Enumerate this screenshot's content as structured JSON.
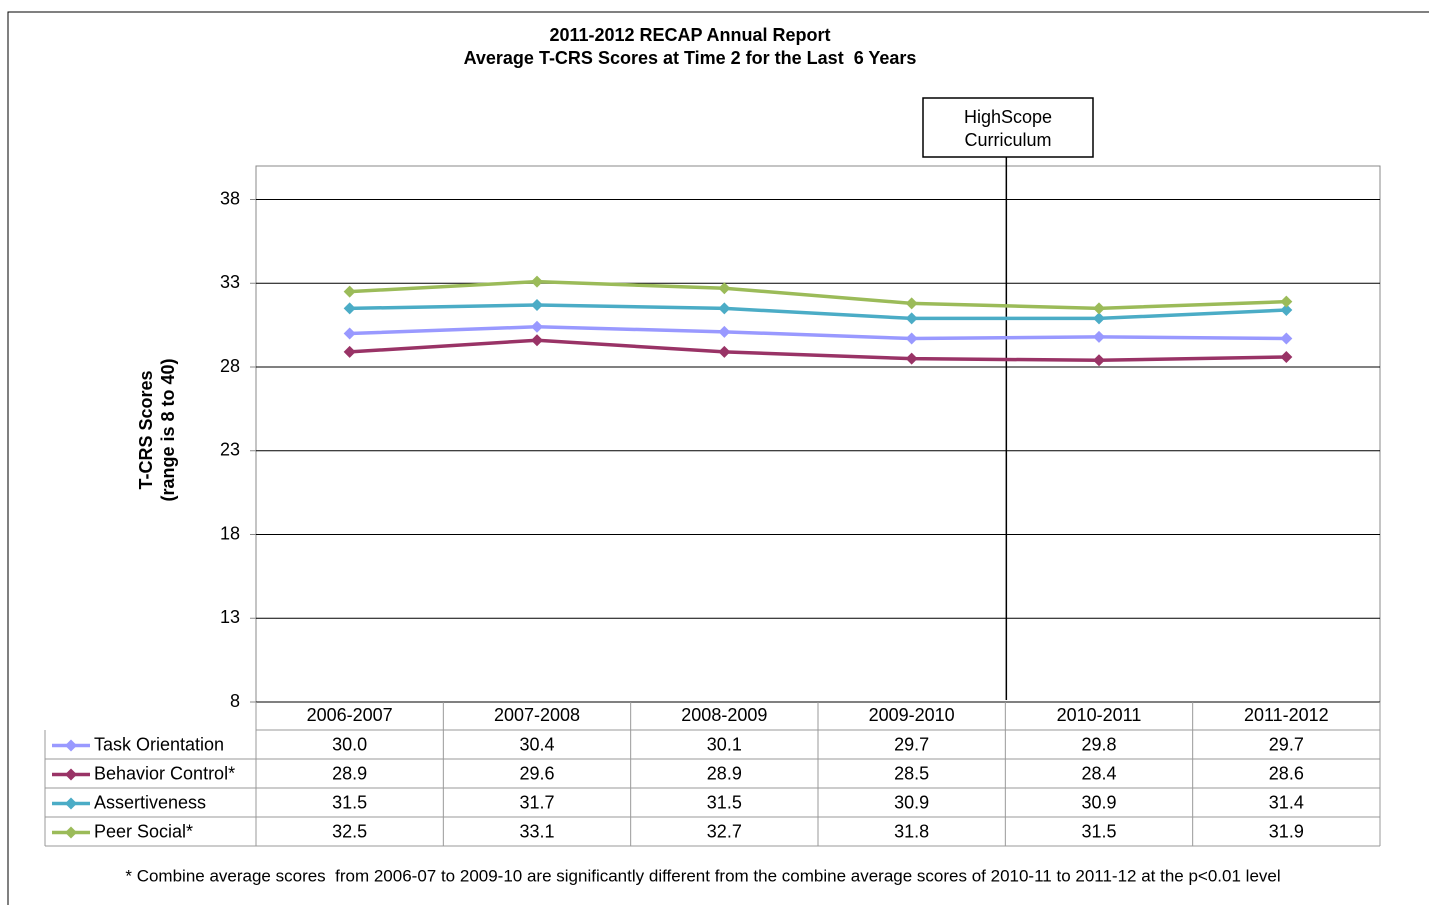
{
  "chart_data": {
    "type": "line",
    "title": "2011-2012 RECAP Annual Report",
    "subtitle": "Average T-CRS Scores at Time 2 for the Last  6 Years",
    "ylabel": [
      "T-CRS Scores",
      "(range is 8 to 40)"
    ],
    "annotation": [
      "HighScope",
      "Curriculum"
    ],
    "footnote": "* Combine average scores  from 2006-07 to 2009-10 are significantly different from the combine average scores of 2010-11 to 2011-12 at the p<0.01 level",
    "categories": [
      "2006-2007",
      "2007-2008",
      "2008-2009",
      "2009-2010",
      "2010-2011",
      "2011-2012"
    ],
    "series": [
      {
        "name": "Task Orientation",
        "color": "#9999ff",
        "values": [
          30.0,
          30.4,
          30.1,
          29.7,
          29.8,
          29.7
        ],
        "value_labels": [
          "30.0",
          "30.4",
          "30.1",
          "29.7",
          "29.8",
          "29.7"
        ]
      },
      {
        "name": "Behavior Control*",
        "color": "#993366",
        "values": [
          28.9,
          29.6,
          28.9,
          28.5,
          28.4,
          28.6
        ],
        "value_labels": [
          "28.9",
          "29.6",
          "28.9",
          "28.5",
          "28.4",
          "28.6"
        ]
      },
      {
        "name": "Assertiveness",
        "color": "#4bacc6",
        "values": [
          31.5,
          31.7,
          31.5,
          30.9,
          30.9,
          31.4
        ],
        "value_labels": [
          "31.5",
          "31.7",
          "31.5",
          "30.9",
          "30.9",
          "31.4"
        ]
      },
      {
        "name": "Peer Social*",
        "color": "#9bbb59",
        "values": [
          32.5,
          33.1,
          32.7,
          31.8,
          31.5,
          31.9
        ],
        "value_labels": [
          "32.5",
          "33.1",
          "32.7",
          "31.8",
          "31.5",
          "31.9"
        ]
      }
    ],
    "ylim": [
      8,
      40
    ],
    "yticks": [
      8,
      13,
      18,
      23,
      28,
      33,
      38
    ],
    "grid": true
  }
}
